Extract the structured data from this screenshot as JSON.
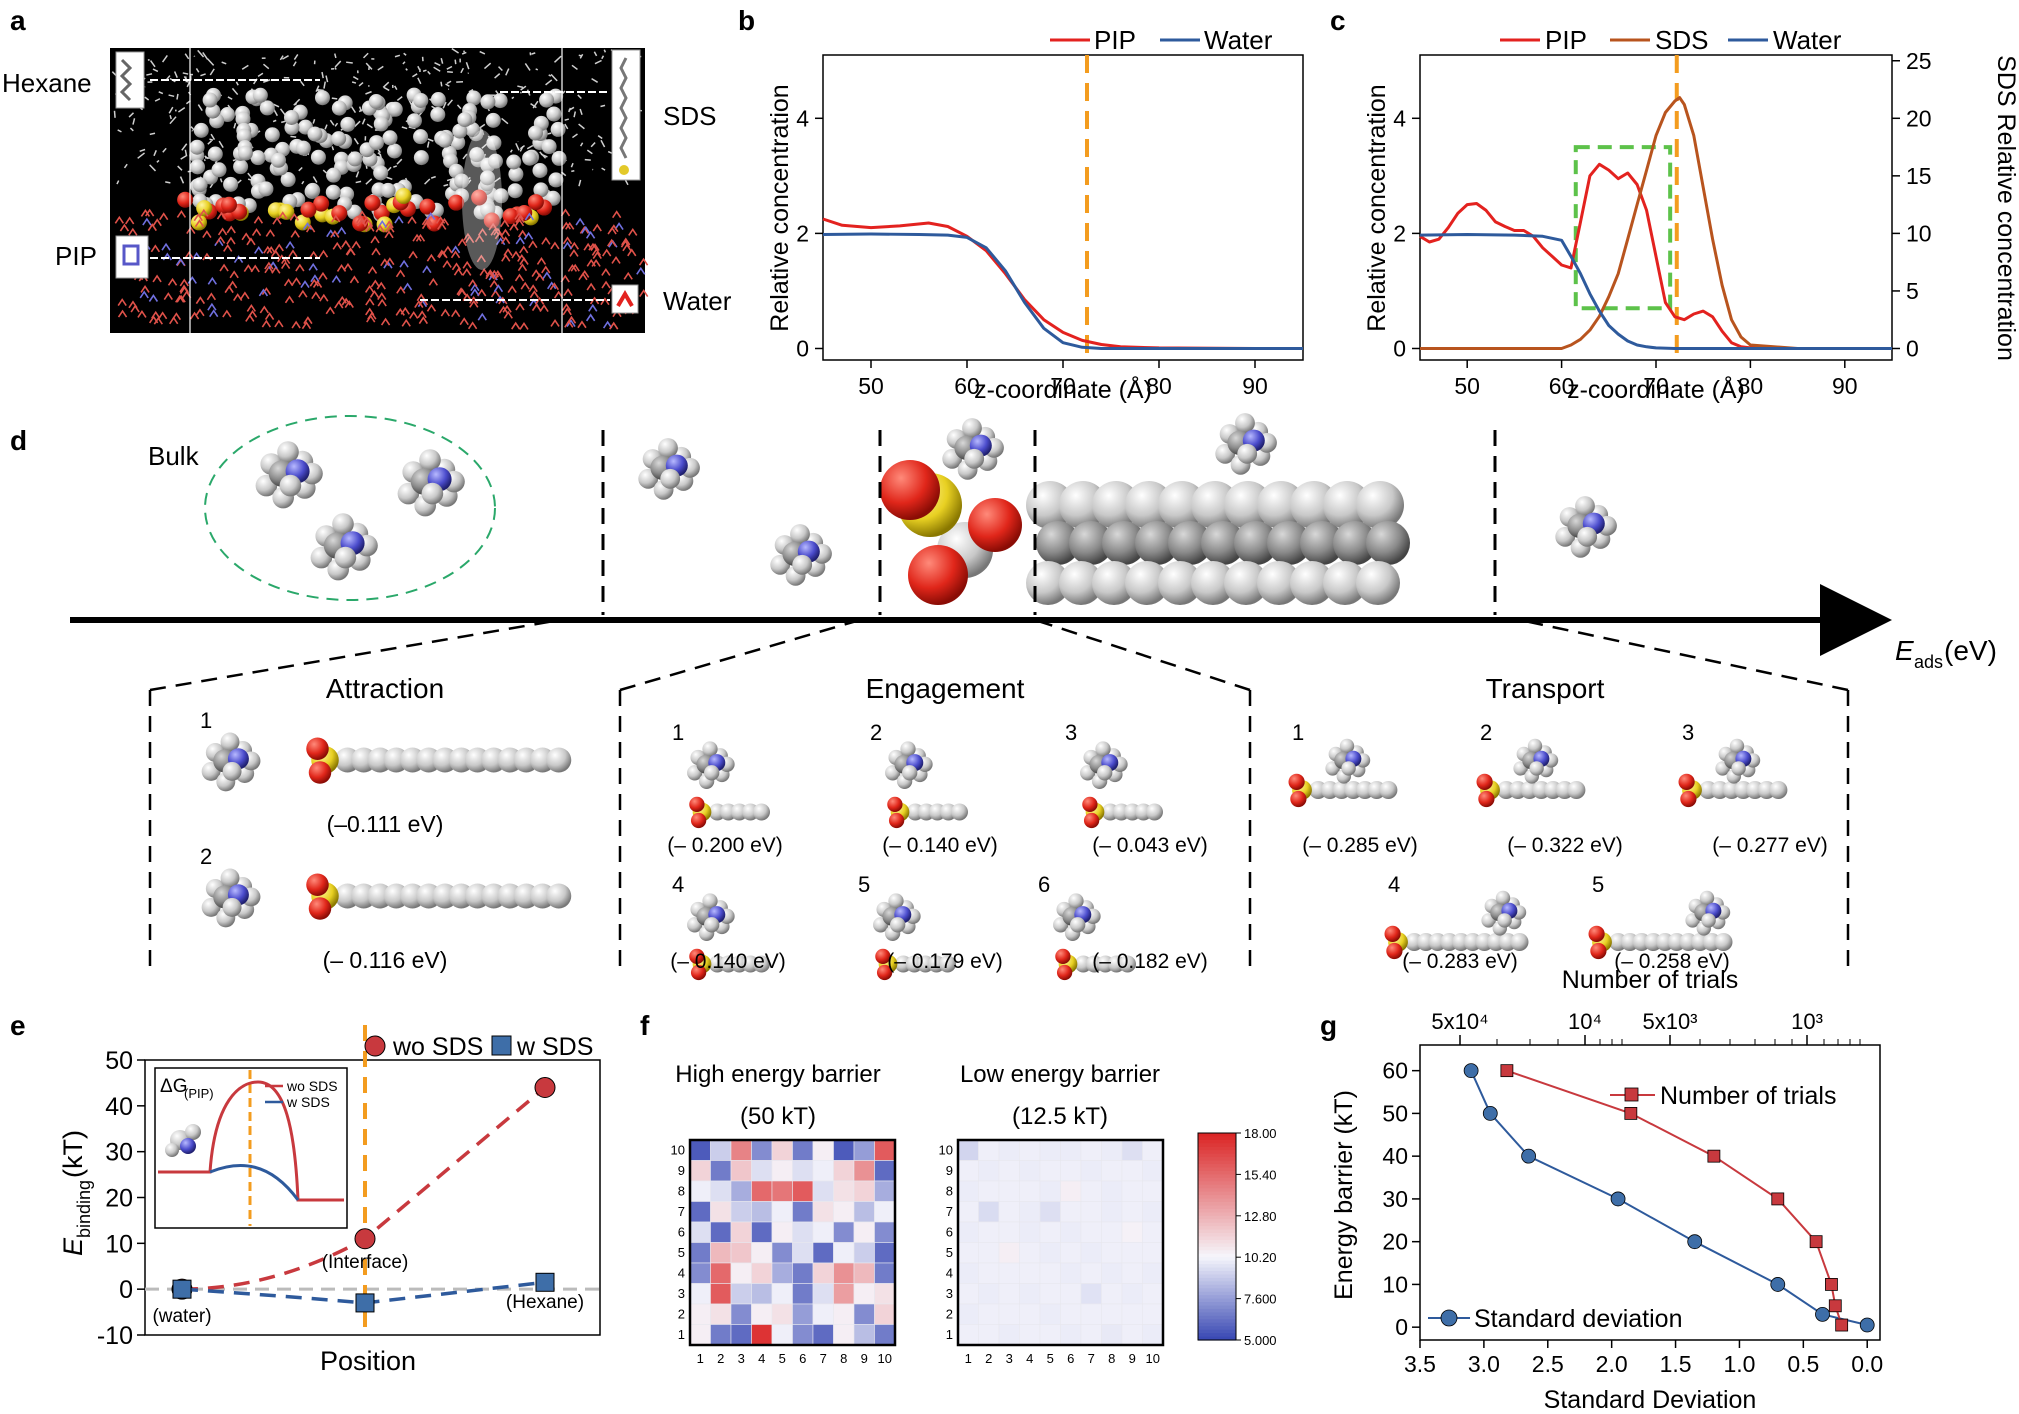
{
  "panel_letters": [
    "a",
    "b",
    "c",
    "d",
    "e",
    "f",
    "g"
  ],
  "panel_a": {
    "labels": {
      "hexane": "Hexane",
      "sds": "SDS",
      "pip": "PIP",
      "water": "Water"
    }
  },
  "chart_data": [
    {
      "id": "b",
      "type": "line",
      "xlabel": "z-coordinate (Å)",
      "ylabel": "Relative concentration",
      "xlim": [
        45,
        95
      ],
      "ylim": [
        -0.2,
        5.1
      ],
      "xticks": [
        50,
        60,
        70,
        80,
        90
      ],
      "yticks": [
        0,
        2,
        4
      ],
      "vline": 72.5,
      "series": [
        {
          "name": "PIP",
          "color": "#e3221f",
          "x": [
            45,
            47,
            50,
            53,
            56,
            58,
            60,
            62,
            64,
            66,
            68,
            70,
            72,
            74,
            76,
            80,
            90,
            95
          ],
          "y": [
            2.25,
            2.14,
            2.1,
            2.13,
            2.18,
            2.12,
            1.95,
            1.7,
            1.3,
            0.85,
            0.5,
            0.28,
            0.14,
            0.07,
            0.03,
            0.01,
            0.0,
            0.0
          ]
        },
        {
          "name": "Water",
          "color": "#2e5a9c",
          "x": [
            45,
            50,
            55,
            58,
            60,
            62,
            64,
            66,
            68,
            70,
            72,
            74,
            76,
            80,
            90,
            95
          ],
          "y": [
            1.98,
            1.99,
            1.98,
            1.97,
            1.93,
            1.75,
            1.35,
            0.8,
            0.35,
            0.1,
            0.02,
            0.0,
            0.0,
            0.0,
            0.0,
            0.0
          ]
        }
      ]
    },
    {
      "id": "c",
      "type": "line",
      "xlabel": "z-coordinate (Å)",
      "ylabel": "Relative concentration",
      "y2label": "SDS Relative concentration",
      "xlim": [
        45,
        95
      ],
      "ylim": [
        -0.2,
        5.1
      ],
      "y2lim": [
        -1,
        25.5
      ],
      "xticks": [
        50,
        60,
        70,
        80,
        90
      ],
      "yticks": [
        0,
        2,
        4
      ],
      "y2ticks": [
        0,
        5,
        10,
        15,
        20,
        25
      ],
      "vline": 72.2,
      "highlight_box": {
        "x": [
          61.5,
          71.5
        ],
        "y": [
          0.7,
          3.5
        ]
      },
      "series": [
        {
          "name": "PIP",
          "color": "#e3221f",
          "axis": "left",
          "x": [
            45,
            46,
            47,
            48,
            49,
            50,
            51,
            52,
            53,
            54,
            55,
            56,
            57,
            58,
            59,
            60,
            61,
            62,
            63,
            64,
            65,
            66,
            67,
            68,
            69,
            70,
            71,
            72,
            73,
            74,
            75,
            76,
            77,
            78,
            79,
            80,
            82,
            85,
            90,
            95
          ],
          "y": [
            1.95,
            1.85,
            1.9,
            2.1,
            2.35,
            2.5,
            2.52,
            2.4,
            2.2,
            2.12,
            2.05,
            2.05,
            1.95,
            1.75,
            1.6,
            1.45,
            1.4,
            2.2,
            3.0,
            3.2,
            3.1,
            2.95,
            3.05,
            2.85,
            2.4,
            1.6,
            0.8,
            0.55,
            0.5,
            0.6,
            0.65,
            0.55,
            0.3,
            0.1,
            0.03,
            0.01,
            0.0,
            0.0,
            0.0,
            0.0
          ]
        },
        {
          "name": "SDS",
          "color": "#b8541e",
          "axis": "right",
          "x": [
            45,
            55,
            60,
            61,
            62,
            63,
            64,
            65,
            66,
            67,
            68,
            69,
            70,
            71,
            72,
            72.5,
            73,
            74,
            75,
            76,
            77,
            78,
            79,
            80,
            85,
            95
          ],
          "y": [
            0,
            0,
            0,
            0.3,
            0.8,
            1.6,
            2.8,
            4.5,
            6.5,
            9.5,
            12.5,
            15.5,
            18.5,
            20.5,
            21.5,
            21.8,
            21.2,
            18.5,
            14,
            9.5,
            5.5,
            2.5,
            1.0,
            0.3,
            0,
            0
          ]
        },
        {
          "name": "Water",
          "color": "#2e5a9c",
          "axis": "left",
          "x": [
            45,
            50,
            55,
            58,
            60,
            61,
            62,
            63,
            64,
            65,
            66,
            67,
            68,
            69,
            70,
            72,
            74,
            76,
            80,
            90,
            95
          ],
          "y": [
            1.97,
            1.98,
            1.97,
            1.95,
            1.88,
            1.6,
            1.3,
            0.95,
            0.65,
            0.4,
            0.25,
            0.13,
            0.06,
            0.03,
            0.01,
            0.0,
            0.0,
            0.0,
            0.0,
            0.0,
            0.0
          ]
        }
      ]
    },
    {
      "id": "e",
      "type": "scatter",
      "xlabel": "Position",
      "ylabel": "E_binding (kT)",
      "ylabel_main": "E",
      "ylabel_sub": "binding",
      "ylabel_unit": " (kT)",
      "categories": [
        "(water)",
        "(Interface)",
        "(Hexane)"
      ],
      "ylim": [
        -10,
        50
      ],
      "yticks": [
        -10,
        0,
        10,
        20,
        30,
        40,
        50
      ],
      "vline_category": "(Interface)",
      "series": [
        {
          "name": "wo SDS",
          "color": "#c8393e",
          "marker": "circle",
          "values": [
            0,
            11,
            44
          ]
        },
        {
          "name": "w SDS",
          "color": "#2e5a9c",
          "marker": "square",
          "values": [
            0,
            -3,
            1.5
          ]
        }
      ],
      "inset": {
        "label_main": "ΔG",
        "label_sub": "(PIP)",
        "series": [
          {
            "name": "wo SDS",
            "color": "#c8393e"
          },
          {
            "name": "w SDS",
            "color": "#2e5a9c"
          }
        ]
      }
    },
    {
      "id": "f-high",
      "type": "heatmap",
      "title_line1": "High energy barrier",
      "title_line2": "(50 kT)",
      "x": [
        1,
        2,
        3,
        4,
        5,
        6,
        7,
        8,
        9,
        10
      ],
      "y": [
        1,
        2,
        3,
        4,
        5,
        6,
        7,
        8,
        9,
        10
      ],
      "colorbar_ticks": [
        "18.00",
        "15.40",
        "12.80",
        "10.20",
        "7.600",
        "5.000"
      ],
      "colorbar_range": [
        5.0,
        18.0
      ],
      "z_rows_top_to_bottom": [
        [
          5.5,
          9.0,
          14.5,
          7.0,
          11.5,
          6.5,
          10.5,
          5.5,
          7.5,
          16.0
        ],
        [
          11.5,
          6.5,
          12.0,
          9.5,
          10.5,
          9.5,
          10.0,
          11.5,
          14.0,
          6.0
        ],
        [
          10.0,
          9.5,
          8.0,
          15.5,
          15.0,
          16.0,
          9.5,
          11.0,
          11.5,
          8.0
        ],
        [
          6.0,
          11.0,
          9.0,
          8.5,
          10.0,
          6.5,
          11.0,
          10.5,
          8.5,
          10.0
        ],
        [
          9.5,
          6.0,
          11.5,
          6.0,
          10.5,
          9.5,
          10.0,
          7.0,
          10.5,
          7.0
        ],
        [
          6.5,
          12.5,
          12.0,
          10.5,
          7.0,
          9.5,
          6.0,
          10.0,
          9.0,
          6.0
        ],
        [
          7.0,
          15.5,
          10.5,
          11.5,
          8.0,
          6.5,
          11.5,
          14.0,
          12.5,
          6.5
        ],
        [
          10.0,
          16.0,
          9.0,
          8.5,
          10.0,
          6.5,
          9.5,
          13.5,
          10.5,
          11.0
        ],
        [
          10.5,
          11.0,
          7.0,
          10.5,
          11.0,
          7.5,
          10.0,
          10.5,
          7.0,
          11.5
        ],
        [
          10.5,
          6.5,
          6.0,
          17.5,
          10.0,
          7.0,
          6.0,
          10.5,
          8.5,
          6.5
        ]
      ]
    },
    {
      "id": "f-low",
      "type": "heatmap",
      "title_line1": "Low energy barrier",
      "title_line2": "(12.5 kT)",
      "x": [
        1,
        2,
        3,
        4,
        5,
        6,
        7,
        8,
        9,
        10
      ],
      "y": [
        1,
        2,
        3,
        4,
        5,
        6,
        7,
        8,
        9,
        10
      ],
      "z_rows_top_to_bottom": [
        [
          9.2,
          10.0,
          9.9,
          10.0,
          9.9,
          9.9,
          10.0,
          9.9,
          9.5,
          10.0
        ],
        [
          10.0,
          9.9,
          10.0,
          9.9,
          10.0,
          10.0,
          9.9,
          10.0,
          10.0,
          9.9
        ],
        [
          9.9,
          10.0,
          10.0,
          10.0,
          9.9,
          10.5,
          10.0,
          9.9,
          10.0,
          10.0
        ],
        [
          10.0,
          9.4,
          10.0,
          9.9,
          9.5,
          10.0,
          10.0,
          9.9,
          10.0,
          9.9
        ],
        [
          9.9,
          10.0,
          10.0,
          9.9,
          10.0,
          9.9,
          10.0,
          10.0,
          10.4,
          10.0
        ],
        [
          10.0,
          10.0,
          10.5,
          10.0,
          9.9,
          10.0,
          9.9,
          10.0,
          10.0,
          10.0
        ],
        [
          9.9,
          10.0,
          10.0,
          10.0,
          10.0,
          9.9,
          10.0,
          9.9,
          10.0,
          9.9
        ],
        [
          10.0,
          9.9,
          10.0,
          9.9,
          10.0,
          10.0,
          9.6,
          10.0,
          9.9,
          10.0
        ],
        [
          9.9,
          10.0,
          10.0,
          10.0,
          9.9,
          10.0,
          10.0,
          10.0,
          10.0,
          10.0
        ],
        [
          10.0,
          10.0,
          9.9,
          10.0,
          10.0,
          9.9,
          10.0,
          9.8,
          10.0,
          9.9
        ]
      ]
    },
    {
      "id": "g",
      "type": "line",
      "ylabel": "Energy barrier (kT)",
      "xlabel_bottom": "Standard Deviation",
      "xlabel_top": "Number of trials",
      "xlim_reversed": [
        3.5,
        -0.1
      ],
      "ylim": [
        -3,
        66
      ],
      "xticks": [
        "3.5",
        "3.0",
        "2.5",
        "2.0",
        "1.5",
        "1.0",
        "0.5",
        "0.0"
      ],
      "yticks": [
        0,
        10,
        20,
        30,
        40,
        50,
        60
      ],
      "xticks_top": [
        "5x10⁴",
        "10⁴",
        "5x10³",
        "10³"
      ],
      "series": [
        {
          "name": "Standard deviation",
          "color": "#2e5a9c",
          "marker": "circle",
          "x": [
            3.1,
            2.95,
            2.65,
            1.95,
            1.35,
            0.7,
            0.35,
            0.0
          ],
          "y": [
            60,
            50,
            40,
            30,
            20,
            10,
            3,
            0.5
          ]
        },
        {
          "name": "Number of trials",
          "color": "#c8393e",
          "marker": "square",
          "x": [
            2.82,
            1.85,
            1.2,
            0.7,
            0.4,
            0.28,
            0.25,
            0.2
          ],
          "y": [
            60,
            50,
            40,
            30,
            20,
            10,
            5,
            0.5
          ]
        }
      ]
    }
  ],
  "panel_d": {
    "bulk_label": "Bulk",
    "axis_label_main": "E",
    "axis_label_sub": "ads",
    "axis_label_unit": " (eV)",
    "groups": [
      {
        "title": "Attraction",
        "items": [
          {
            "num": "1",
            "energy": "(–0.111 eV)"
          },
          {
            "num": "2",
            "energy": "(– 0.116 eV)"
          }
        ]
      },
      {
        "title": "Engagement",
        "items": [
          {
            "num": "1",
            "energy": "(– 0.200 eV)"
          },
          {
            "num": "2",
            "energy": "(– 0.140 eV)"
          },
          {
            "num": "3",
            "energy": "(– 0.043 eV)"
          },
          {
            "num": "4",
            "energy": "(– 0.140 eV)"
          },
          {
            "num": "5",
            "energy": "(– 0.179 eV)"
          },
          {
            "num": "6",
            "energy": "(– 0.182 eV)"
          }
        ]
      },
      {
        "title": "Transport",
        "items": [
          {
            "num": "1",
            "energy": "(– 0.285 eV)"
          },
          {
            "num": "2",
            "energy": "(– 0.322 eV)"
          },
          {
            "num": "3",
            "energy": "(– 0.277 eV)"
          },
          {
            "num": "4",
            "energy": "(– 0.283 eV)"
          },
          {
            "num": "5",
            "energy": "(– 0.258 eV)"
          }
        ]
      }
    ]
  },
  "colors": {
    "pip": "#e3221f",
    "sds": "#b8541e",
    "water": "#2e5a9c",
    "vline": "#f39c1f",
    "box": "#5dc24a",
    "wo": "#c8393e",
    "w": "#2e5a9c",
    "ellipse": "#2aa86a"
  }
}
